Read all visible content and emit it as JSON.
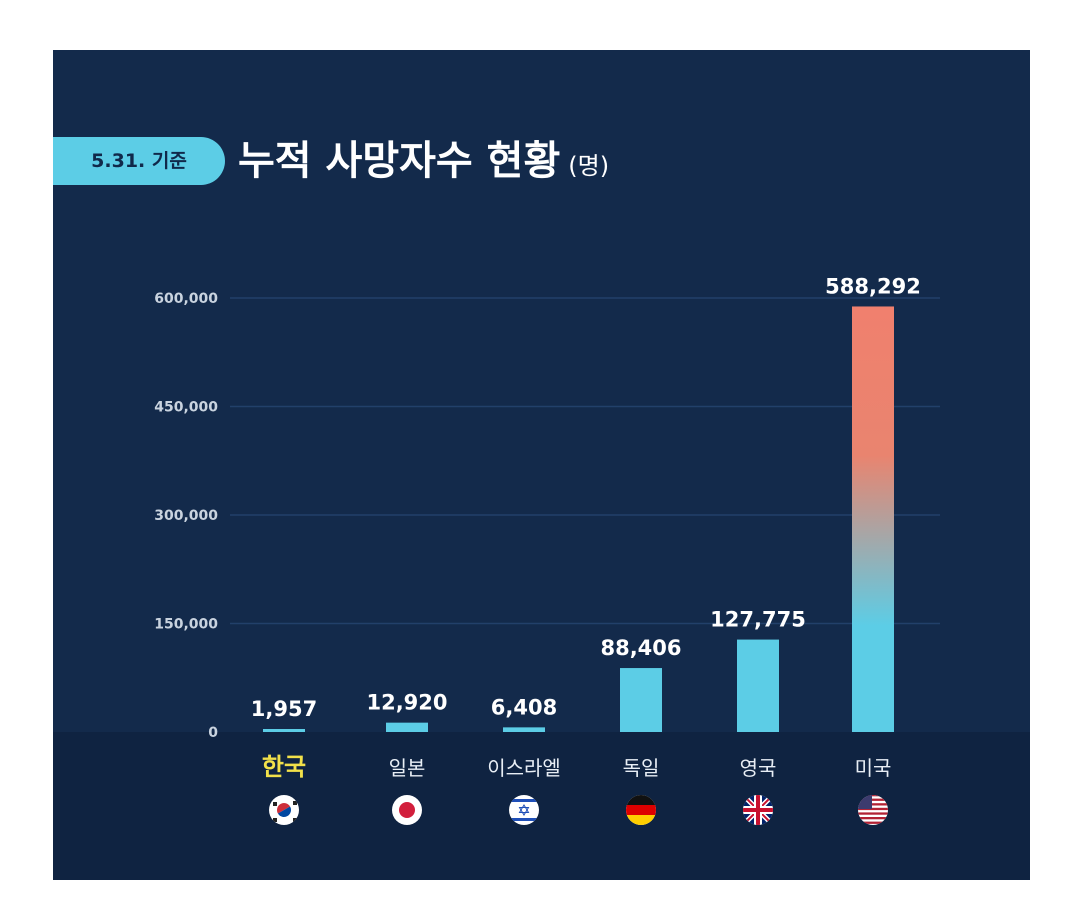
{
  "badge": "5.31. 기준",
  "title": "누적 사망자수 현황",
  "unit": "(명)",
  "colors": {
    "background": "#132a4b",
    "bar": "#5ccde6",
    "us_bar_top": "#f0806e",
    "highlight_label": "#f2e14a",
    "badge": "#5ccde6"
  },
  "chart_data": {
    "type": "bar",
    "title": "누적 사망자수 현황",
    "categories": [
      "한국",
      "일본",
      "이스라엘",
      "독일",
      "영국",
      "미국"
    ],
    "values": [
      1957,
      12920,
      6408,
      88406,
      127775,
      588292
    ],
    "value_labels": [
      "1,957",
      "12,920",
      "6,408",
      "88,406",
      "127,775",
      "588,292"
    ],
    "flags": [
      "south-korea-flag-icon",
      "japan-flag-icon",
      "israel-flag-icon",
      "germany-flag-icon",
      "uk-flag-icon",
      "usa-flag-icon"
    ],
    "highlighted_category": "한국",
    "ylim": [
      0,
      600000
    ],
    "yticks": [
      0,
      150000,
      300000,
      450000,
      600000
    ],
    "ytick_labels": [
      "0",
      "150,000",
      "300,000",
      "450,000",
      "600,000"
    ],
    "grid": true
  }
}
